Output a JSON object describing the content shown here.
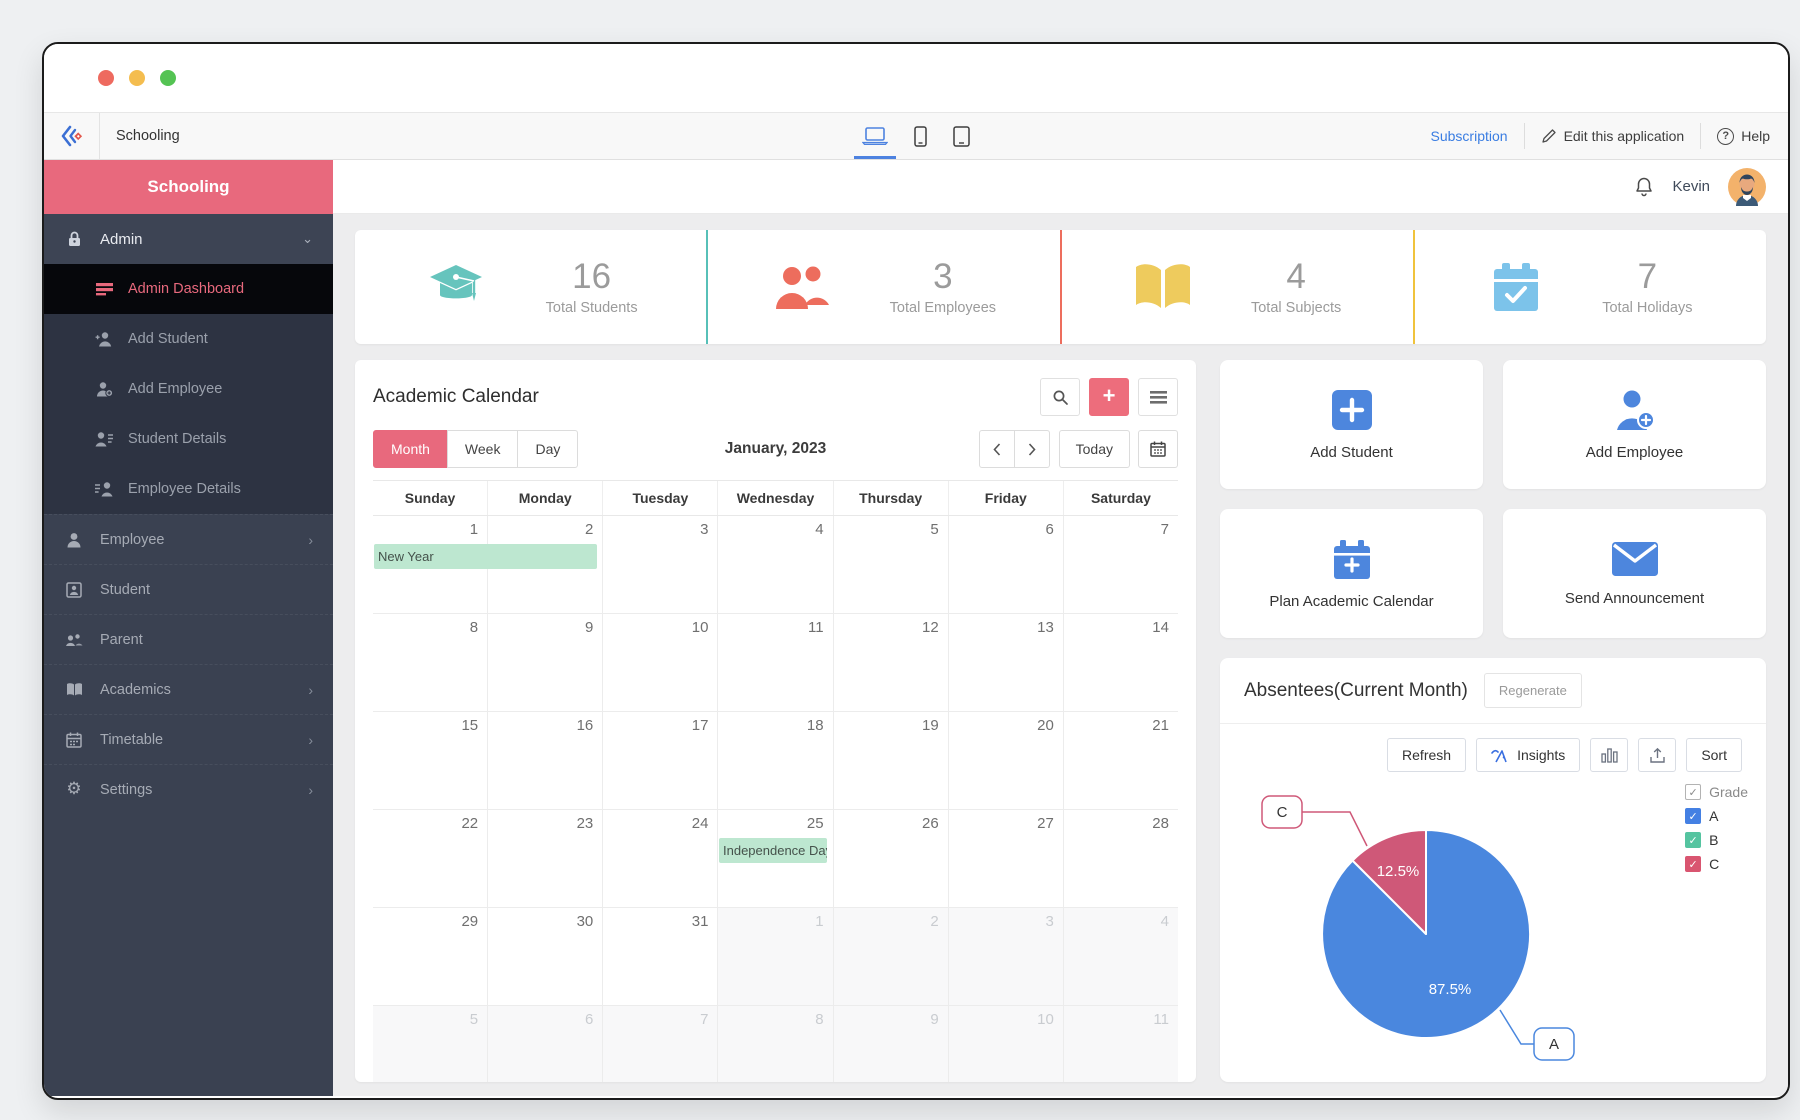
{
  "titlebar": {
    "traffic_lights": [
      "#ee6a5f",
      "#f4bd4f",
      "#54c353"
    ]
  },
  "topbar": {
    "breadcrumb": "Schooling",
    "devices": [
      "laptop-icon",
      "phone-icon",
      "tablet-icon"
    ],
    "active_device": "laptop",
    "subscription_label": "Subscription",
    "edit_label": "Edit this application",
    "help_label": "Help"
  },
  "sidebar": {
    "title": "Schooling",
    "admin": {
      "label": "Admin",
      "icon": "lock-icon",
      "expanded": true
    },
    "admin_items": [
      {
        "label": "Admin Dashboard",
        "icon": "dashboard-lines-icon",
        "active": true
      },
      {
        "label": "Add Student",
        "icon": "person-add-icon",
        "active": false
      },
      {
        "label": "Add Employee",
        "icon": "person-plus-icon",
        "active": false
      },
      {
        "label": "Student Details",
        "icon": "person-list-icon",
        "active": false
      },
      {
        "label": "Employee Details",
        "icon": "list-person-icon",
        "active": false
      }
    ],
    "items": [
      {
        "label": "Employee",
        "icon": "person-icon",
        "chevron": true
      },
      {
        "label": "Student",
        "icon": "person-badge-icon",
        "chevron": false
      },
      {
        "label": "Parent",
        "icon": "people-icon",
        "chevron": false
      },
      {
        "label": "Academics",
        "icon": "book-icon",
        "chevron": true
      },
      {
        "label": "Timetable",
        "icon": "calendar-icon",
        "chevron": true
      },
      {
        "label": "Settings",
        "icon": "gear-icon",
        "chevron": true
      }
    ]
  },
  "header": {
    "user": "Kevin"
  },
  "stats": [
    {
      "value": "16",
      "label": "Total Students",
      "icon": "graduation-cap-icon",
      "icon_color": "#66c4bd",
      "divider_color": "#57c0b8"
    },
    {
      "value": "3",
      "label": "Total Employees",
      "icon": "people-icon",
      "icon_color": "#ed6d5d",
      "divider_color": "#ed6d5d"
    },
    {
      "value": "4",
      "label": "Total Subjects",
      "icon": "open-book-icon",
      "icon_color": "#eecb5d",
      "divider_color": "#f0c33c"
    },
    {
      "value": "7",
      "label": "Total Holidays",
      "icon": "calendar-check-icon",
      "icon_color": "#7cc3ea",
      "divider_color": ""
    }
  ],
  "calendar": {
    "title": "Academic Calendar",
    "views": [
      "Month",
      "Week",
      "Day"
    ],
    "active_view": "Month",
    "month_label": "January, 2023",
    "today_label": "Today",
    "weekdays": [
      "Sunday",
      "Monday",
      "Tuesday",
      "Wednesday",
      "Thursday",
      "Friday",
      "Saturday"
    ],
    "event_bg": "#bde7d0",
    "cells": [
      {
        "d": "1",
        "ev": "New Year",
        "span": 2
      },
      {
        "d": "2"
      },
      {
        "d": "3"
      },
      {
        "d": "4"
      },
      {
        "d": "5"
      },
      {
        "d": "6"
      },
      {
        "d": "7"
      },
      {
        "d": "8"
      },
      {
        "d": "9"
      },
      {
        "d": "10"
      },
      {
        "d": "11"
      },
      {
        "d": "12"
      },
      {
        "d": "13"
      },
      {
        "d": "14"
      },
      {
        "d": "15"
      },
      {
        "d": "16"
      },
      {
        "d": "17"
      },
      {
        "d": "18"
      },
      {
        "d": "19"
      },
      {
        "d": "20"
      },
      {
        "d": "21"
      },
      {
        "d": "22"
      },
      {
        "d": "23"
      },
      {
        "d": "24"
      },
      {
        "d": "25",
        "ev": "Independence Day",
        "span": 1
      },
      {
        "d": "26"
      },
      {
        "d": "27"
      },
      {
        "d": "28"
      },
      {
        "d": "29"
      },
      {
        "d": "30"
      },
      {
        "d": "31"
      },
      {
        "d": "1",
        "muted": true
      },
      {
        "d": "2",
        "muted": true
      },
      {
        "d": "3",
        "muted": true
      },
      {
        "d": "4",
        "muted": true
      },
      {
        "d": "5",
        "muted": true
      },
      {
        "d": "6",
        "muted": true
      },
      {
        "d": "7",
        "muted": true
      },
      {
        "d": "8",
        "muted": true
      },
      {
        "d": "9",
        "muted": true
      },
      {
        "d": "10",
        "muted": true
      },
      {
        "d": "11",
        "muted": true
      }
    ]
  },
  "actions": [
    {
      "label": "Add Student",
      "icon": "plus-square-icon"
    },
    {
      "label": "Add Employee",
      "icon": "person-plus-icon"
    },
    {
      "label": "Plan Academic Calendar",
      "icon": "calendar-plus-icon"
    },
    {
      "label": "Send Announcement",
      "icon": "envelope-icon"
    }
  ],
  "absentees": {
    "title": "Absentees(Current Month)",
    "regenerate_label": "Regenerate",
    "toolbar": {
      "refresh": "Refresh",
      "insights": "Insights",
      "sort": "Sort"
    },
    "legend": {
      "header": "Grade",
      "items": [
        {
          "label": "A",
          "color": "#4480e3"
        },
        {
          "label": "B",
          "color": "#55c4a0"
        },
        {
          "label": "C",
          "color": "#d95570"
        }
      ]
    },
    "chart_data": {
      "type": "pie",
      "title": "Absentees(Current Month)",
      "labels": [
        "A",
        "C"
      ],
      "values": [
        87.5,
        12.5
      ],
      "data_labels": [
        "87.5%",
        "12.5%"
      ],
      "colors": [
        "#4a87de",
        "#cf5878"
      ],
      "callouts": [
        "A",
        "C"
      ],
      "legend_position": "top-right",
      "legend_entries": [
        "Grade",
        "A",
        "B",
        "C"
      ]
    }
  }
}
